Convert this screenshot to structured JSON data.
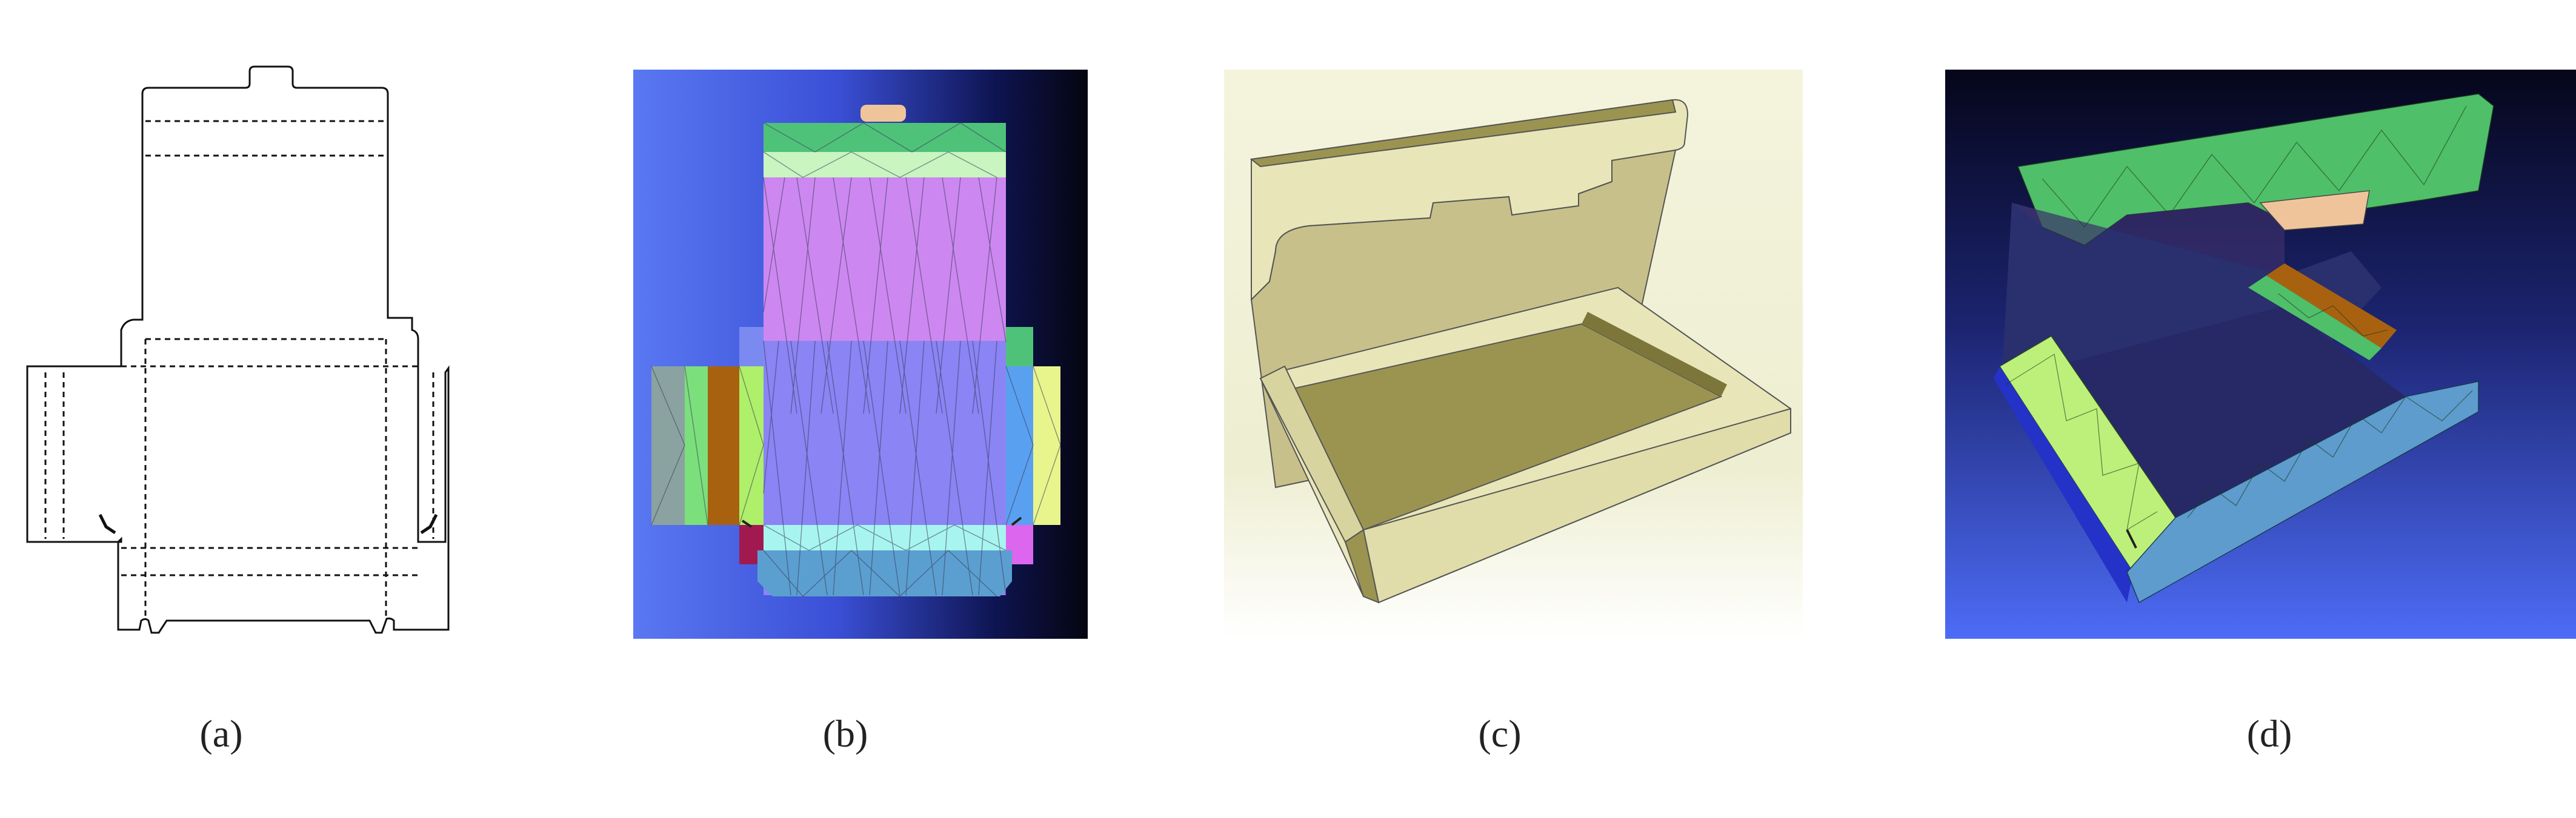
{
  "figure": {
    "captions": [
      "(a)",
      "(b)",
      "(c)",
      "(d)"
    ],
    "panels": [
      {
        "id": "a",
        "kind": "dieline"
      },
      {
        "id": "b",
        "kind": "triangulated-mesh-flat"
      },
      {
        "id": "c",
        "kind": "rendered-box"
      },
      {
        "id": "d",
        "kind": "triangulated-mesh-folded"
      }
    ]
  },
  "colors": {
    "b_bg_left": "#5a78f2",
    "b_bg_right": "#050510",
    "b_top_flap": "#4fc27a",
    "b_top_band": "#c8f5c0",
    "b_lid": "#cc88f0",
    "b_base": "#8a84f5",
    "b_front": "#a8f5f0",
    "b_bottom": "#5b9fd0",
    "b_tab": "#f0c49b",
    "b_left_gray": "#8aa3a0",
    "b_left_green": "#7be07b",
    "b_left_brown": "#a8620f",
    "b_left_lime": "#aef06a",
    "b_right_yellow": "#e8f58c",
    "b_right_blue": "#5aa0f0",
    "b_magenta": "#dd66ee",
    "b_maroon": "#a01a50",
    "c_bg": "#f4f4dd",
    "c_side": "#e8e6b8",
    "c_dark": "#9b9450",
    "d_bg_top": "#05061a",
    "d_bg_bottom": "#4d6cf6",
    "d_green": "#4fbf6a",
    "d_lime": "#bdf07a",
    "d_blue": "#5d9ccc"
  }
}
